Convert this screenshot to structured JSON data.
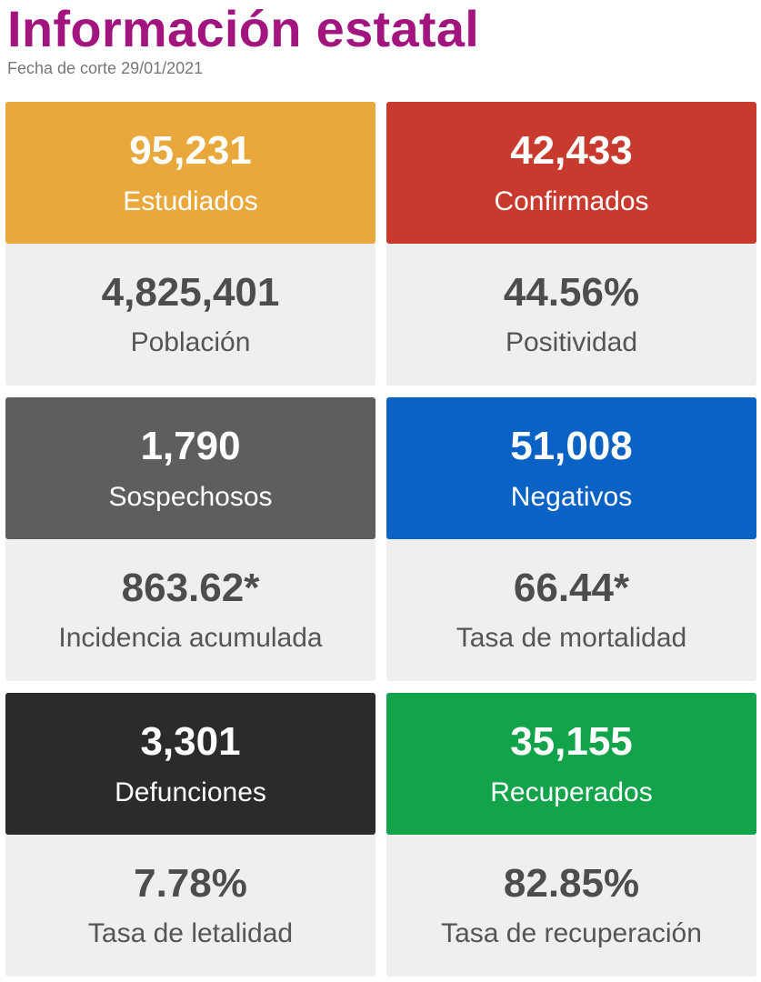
{
  "header": {
    "title": "Información estatal",
    "subtitle": "Fecha de corte 29/01/2021",
    "title_color": "#a3157e"
  },
  "cards": [
    {
      "top": {
        "value": "95,231",
        "label": "Estudiados",
        "bg": "#e8a83b",
        "fg": "#ffffff"
      },
      "bottom": {
        "value": "4,825,401",
        "label": "Población"
      }
    },
    {
      "top": {
        "value": "42,433",
        "label": "Confirmados",
        "bg": "#c93a2e",
        "fg": "#ffffff"
      },
      "bottom": {
        "value": "44.56%",
        "label": "Positividad"
      }
    },
    {
      "top": {
        "value": "1,790",
        "label": "Sospechosos",
        "bg": "#5e5e5e",
        "fg": "#ffffff"
      },
      "bottom": {
        "value": "863.62*",
        "label": "Incidencia acumulada"
      }
    },
    {
      "top": {
        "value": "51,008",
        "label": "Negativos",
        "bg": "#0a62c4",
        "fg": "#ffffff"
      },
      "bottom": {
        "value": "66.44*",
        "label": "Tasa de mortalidad"
      }
    },
    {
      "top": {
        "value": "3,301",
        "label": "Defunciones",
        "bg": "#2b2b2b",
        "fg": "#ffffff"
      },
      "bottom": {
        "value": "7.78%",
        "label": "Tasa de letalidad"
      }
    },
    {
      "top": {
        "value": "35,155",
        "label": "Recuperados",
        "bg": "#13a44b",
        "fg": "#ffffff"
      },
      "bottom": {
        "value": "82.85%",
        "label": "Tasa de recuperación"
      }
    }
  ]
}
